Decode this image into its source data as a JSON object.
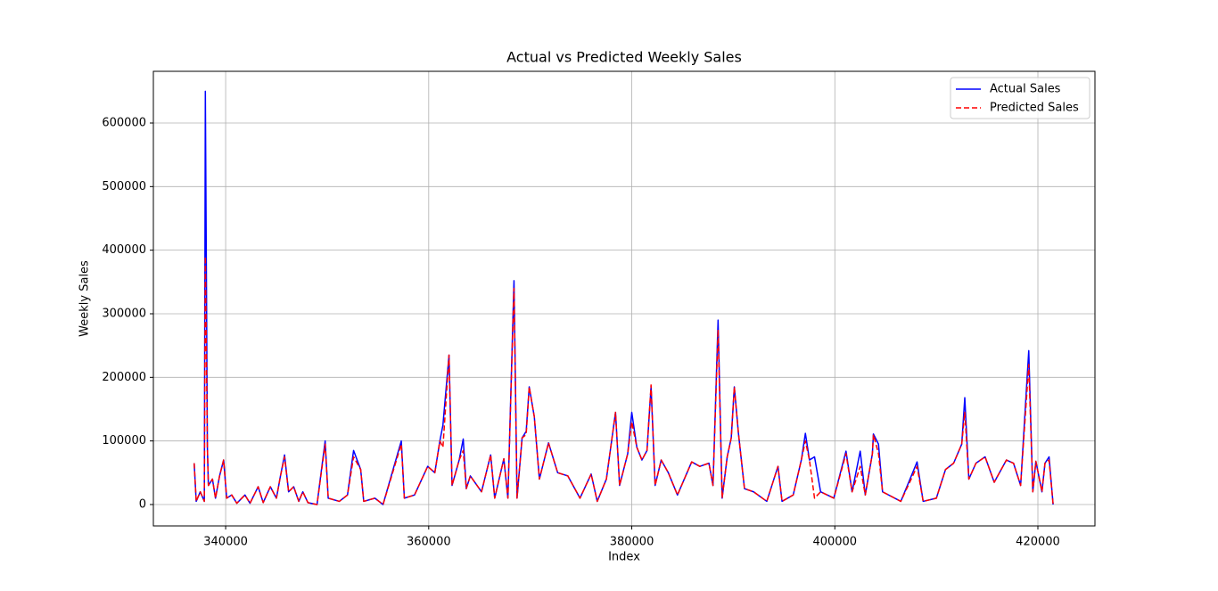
{
  "chart_data": {
    "type": "line",
    "title": "Actual vs Predicted Weekly Sales",
    "x_label": "Index",
    "y_label": "Weekly Sales",
    "x": [
      336900,
      337100,
      337500,
      337900,
      338000,
      338200,
      338300,
      338700,
      339000,
      339400,
      339800,
      340100,
      340600,
      341100,
      341900,
      342400,
      343200,
      343700,
      344400,
      345000,
      345400,
      345800,
      346200,
      346700,
      347200,
      347600,
      348100,
      349000,
      349800,
      350100,
      351200,
      352000,
      352600,
      353300,
      353600,
      354700,
      355500,
      357300,
      357600,
      358600,
      359900,
      360600,
      361100,
      361400,
      362000,
      362300,
      363000,
      363400,
      363700,
      364100,
      365200,
      366100,
      366500,
      367400,
      367800,
      368400,
      368700,
      369200,
      369600,
      369900,
      370400,
      370900,
      371800,
      372700,
      373700,
      374900,
      376000,
      376600,
      377500,
      378400,
      378800,
      379600,
      380000,
      380500,
      381000,
      381500,
      381900,
      382300,
      382900,
      383600,
      384500,
      385900,
      386700,
      387600,
      388000,
      388500,
      388900,
      389400,
      389800,
      390100,
      390500,
      391100,
      392000,
      393300,
      394400,
      394800,
      395900,
      396700,
      397100,
      397500,
      398000,
      398600,
      399900,
      401100,
      401700,
      402500,
      403000,
      403700,
      403800,
      404300,
      404700,
      406500,
      408100,
      408700,
      410000,
      410900,
      411700,
      412500,
      412800,
      413200,
      413900,
      414800,
      415700,
      416900,
      417600,
      418300,
      419100,
      419500,
      419800,
      420400,
      420700,
      421100,
      421500
    ],
    "series": [
      {
        "name": "Actual Sales",
        "color": "#0000ff",
        "linestyle": "solid",
        "values": [
          65000,
          5000,
          20000,
          5000,
          650000,
          90000,
          30000,
          40000,
          10000,
          45000,
          70000,
          10000,
          15000,
          2000,
          15000,
          2000,
          28000,
          3000,
          28000,
          10000,
          45000,
          78000,
          20000,
          28000,
          5000,
          20000,
          3000,
          0,
          100000,
          10000,
          5000,
          15000,
          85000,
          55000,
          5000,
          10000,
          0,
          100000,
          10000,
          15000,
          60000,
          50000,
          100000,
          125000,
          235000,
          30000,
          70000,
          103000,
          25000,
          45000,
          20000,
          78000,
          10000,
          72000,
          10000,
          352000,
          10000,
          105000,
          115000,
          185000,
          138000,
          40000,
          97000,
          50000,
          45000,
          10000,
          48000,
          5000,
          40000,
          145000,
          30000,
          80000,
          145000,
          90000,
          70000,
          85000,
          185000,
          30000,
          70000,
          50000,
          15000,
          67000,
          60000,
          65000,
          30000,
          290000,
          10000,
          75000,
          105000,
          185000,
          113000,
          25000,
          20000,
          5000,
          60000,
          5000,
          15000,
          70000,
          112000,
          70000,
          75000,
          20000,
          10000,
          84000,
          20000,
          84000,
          15000,
          80000,
          111000,
          95000,
          20000,
          5000,
          67000,
          5000,
          10000,
          55000,
          65000,
          95000,
          168000,
          40000,
          65000,
          75000,
          35000,
          70000,
          65000,
          30000,
          242000,
          20000,
          68000,
          20000,
          65000,
          75000,
          0
        ]
      },
      {
        "name": "Predicted Sales",
        "color": "#ff0000",
        "linestyle": "dashed",
        "values": [
          65000,
          5000,
          20000,
          5000,
          390000,
          90000,
          30000,
          40000,
          10000,
          45000,
          70000,
          10000,
          15000,
          2000,
          15000,
          2000,
          28000,
          3000,
          28000,
          10000,
          45000,
          75000,
          20000,
          28000,
          5000,
          20000,
          3000,
          0,
          95000,
          10000,
          5000,
          15000,
          75000,
          55000,
          5000,
          10000,
          0,
          95000,
          10000,
          15000,
          60000,
          50000,
          100000,
          90000,
          235000,
          30000,
          70000,
          85000,
          25000,
          45000,
          20000,
          78000,
          10000,
          72000,
          10000,
          340000,
          10000,
          105000,
          110000,
          185000,
          138000,
          40000,
          97000,
          50000,
          45000,
          10000,
          48000,
          5000,
          40000,
          145000,
          30000,
          80000,
          130000,
          90000,
          70000,
          85000,
          188000,
          30000,
          70000,
          50000,
          15000,
          67000,
          60000,
          65000,
          30000,
          275000,
          10000,
          75000,
          105000,
          185000,
          113000,
          25000,
          20000,
          5000,
          60000,
          5000,
          15000,
          70000,
          100000,
          70000,
          10000,
          20000,
          10000,
          80000,
          20000,
          60000,
          15000,
          80000,
          110000,
          80000,
          20000,
          5000,
          60000,
          5000,
          10000,
          55000,
          65000,
          95000,
          145000,
          40000,
          65000,
          75000,
          35000,
          70000,
          65000,
          30000,
          220000,
          20000,
          68000,
          20000,
          65000,
          70000,
          0
        ]
      }
    ],
    "xlim": [
      332880,
      425620
    ],
    "ylim": [
      -33650,
      681300
    ],
    "xticks": [
      340000,
      360000,
      380000,
      400000,
      420000
    ],
    "yticks": [
      0,
      100000,
      200000,
      300000,
      400000,
      500000,
      600000
    ],
    "grid": true,
    "legend": "upper right"
  }
}
